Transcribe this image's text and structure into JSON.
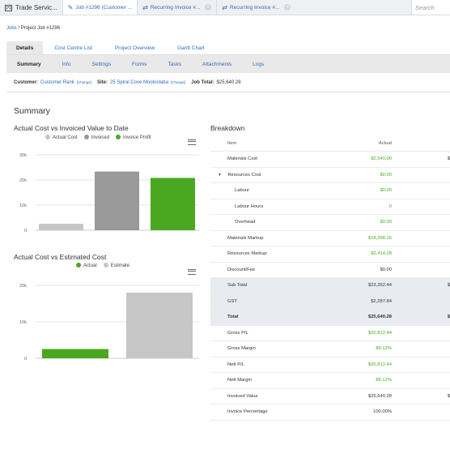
{
  "app": {
    "name": "Trade Servic..."
  },
  "tabs": [
    {
      "label": "Job #1296 (Customer ..."
    },
    {
      "label": "Recurring Invoice #..."
    },
    {
      "label": "Recurring Invoice #..."
    }
  ],
  "search": {
    "placeholder": "Search"
  },
  "breadcrumb": {
    "parent": "Jobs",
    "separator": " / ",
    "current": "Project Job #1296"
  },
  "main_tabs": [
    "Details",
    "Cost Centre List",
    "Project Overview",
    "Gantt Chart"
  ],
  "sub_tabs": [
    "Summary",
    "Info",
    "Settings",
    "Forms",
    "Tasks",
    "Attachments",
    "Logs"
  ],
  "info": {
    "customer_label": "Customer:",
    "customer_value": "Customer Rank",
    "change": "[Change]",
    "site_label": "Site:",
    "site_value": "25 Spiral Cove Mooloolaba",
    "total_label": "Job Total:",
    "total_value": "$25,640.28"
  },
  "summary": {
    "title": "Summary"
  },
  "colors": {
    "accent": "#2f6bbf",
    "cost": "#c6c6c6",
    "invoiced": "#999999",
    "profit": "#4aa820"
  },
  "chart_data": [
    {
      "type": "bar",
      "title": "Actual Cost vs Invoiced Value to Date",
      "categories": [
        "Actual Cost",
        "Invoiced",
        "Invoice Profit"
      ],
      "values": [
        2540,
        23352.44,
        20812.44
      ],
      "legend": [
        "Actual Cost",
        "Invoiced",
        "Invoice Profit"
      ],
      "yticks": [
        "0",
        "10k",
        "20k",
        "30k"
      ],
      "ylim": [
        0,
        30000
      ],
      "grid": true,
      "legend_position": "top"
    },
    {
      "type": "bar",
      "title": "Actual Cost vs Estimated Cost",
      "categories": [
        "Actual",
        "Estimate"
      ],
      "values": [
        2540,
        18000
      ],
      "legend": [
        "Actual",
        "Estimate"
      ],
      "yticks": [
        "0",
        "10k",
        "20k"
      ],
      "ylim": [
        0,
        20000
      ],
      "grid": true,
      "legend_position": "top"
    }
  ],
  "breakdown": {
    "title": "Breakdown",
    "header": {
      "item": "Item",
      "actual": "Actual"
    },
    "rows": [
      {
        "label": "Materials Cost",
        "value": "$2,540.00",
        "green": true,
        "extra": "$"
      },
      {
        "label": "Resources Cost",
        "value": "$0.00",
        "green": true,
        "expandable": true
      },
      {
        "label": "Labour",
        "value": "$0.00",
        "green": true,
        "sub": true
      },
      {
        "label": "Labour Hours",
        "value": "0",
        "green": true,
        "sub": true
      },
      {
        "label": "Overhead",
        "value": "$0.00",
        "green": true,
        "sub": true
      },
      {
        "label": "Materials Markup",
        "value": "$18,398.16",
        "green": true
      },
      {
        "label": "Resources Markup",
        "value": "$2,414.28",
        "green": true
      },
      {
        "label": "Discount/Fee",
        "value": "$0.00"
      },
      {
        "label": "Sub Total",
        "value": "$23,352.44",
        "shade": true,
        "extra": "$"
      },
      {
        "label": "GST",
        "value": "$2,287.84",
        "shade": true
      },
      {
        "label": "Total",
        "value": "$25,640.28",
        "shade": true,
        "bold": true,
        "extra": "$"
      },
      {
        "label": "Gross P/L",
        "value": "$20,812.44",
        "green": true
      },
      {
        "label": "Gross Margin",
        "value": "89.12%",
        "green": true
      },
      {
        "label": "Nett P/L",
        "value": "$20,812.44",
        "green": true
      },
      {
        "label": "Nett Margin",
        "value": "89.12%",
        "green": true
      },
      {
        "label": "Invoiced Value",
        "value": "$25,640.28",
        "extra": "$"
      },
      {
        "label": "Invoice Percentage",
        "value": "100.00%"
      }
    ]
  }
}
